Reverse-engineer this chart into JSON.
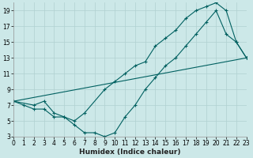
{
  "xlabel": "Humidex (Indice chaleur)",
  "bg_color": "#cce8e8",
  "grid_color": "#b0d0d0",
  "line_color": "#006060",
  "xlim": [
    0,
    23
  ],
  "ylim": [
    3,
    20
  ],
  "xticks": [
    0,
    1,
    2,
    3,
    4,
    5,
    6,
    7,
    8,
    9,
    10,
    11,
    12,
    13,
    14,
    15,
    16,
    17,
    18,
    19,
    20,
    21,
    22,
    23
  ],
  "yticks": [
    3,
    5,
    7,
    9,
    11,
    13,
    15,
    17,
    19
  ],
  "line1_x": [
    0,
    1,
    2,
    3,
    4,
    5,
    6,
    7,
    9,
    10,
    11,
    12,
    13,
    14,
    15,
    16,
    17,
    18,
    19,
    20,
    21,
    22,
    23
  ],
  "line1_y": [
    7.5,
    7,
    6.5,
    6.5,
    5.5,
    5.5,
    5,
    6,
    9,
    10,
    11,
    12,
    12.5,
    14.5,
    15.5,
    16.5,
    18,
    19,
    19.5,
    20,
    19,
    15,
    13
  ],
  "line2_x": [
    0,
    2,
    3,
    4,
    5,
    6,
    7,
    8,
    9,
    10,
    11,
    12,
    13,
    14,
    15,
    16,
    17,
    18,
    19,
    20,
    21,
    22,
    23
  ],
  "line2_y": [
    7.5,
    7,
    7.5,
    6,
    5.5,
    4.5,
    3.5,
    3.5,
    3,
    3.5,
    5.5,
    7,
    9,
    10.5,
    12,
    13,
    14.5,
    16,
    17.5,
    19,
    16,
    15,
    13
  ],
  "line3_x": [
    0,
    23
  ],
  "line3_y": [
    7.5,
    13
  ],
  "tick_fontsize": 5.5,
  "xlabel_fontsize": 6.5
}
